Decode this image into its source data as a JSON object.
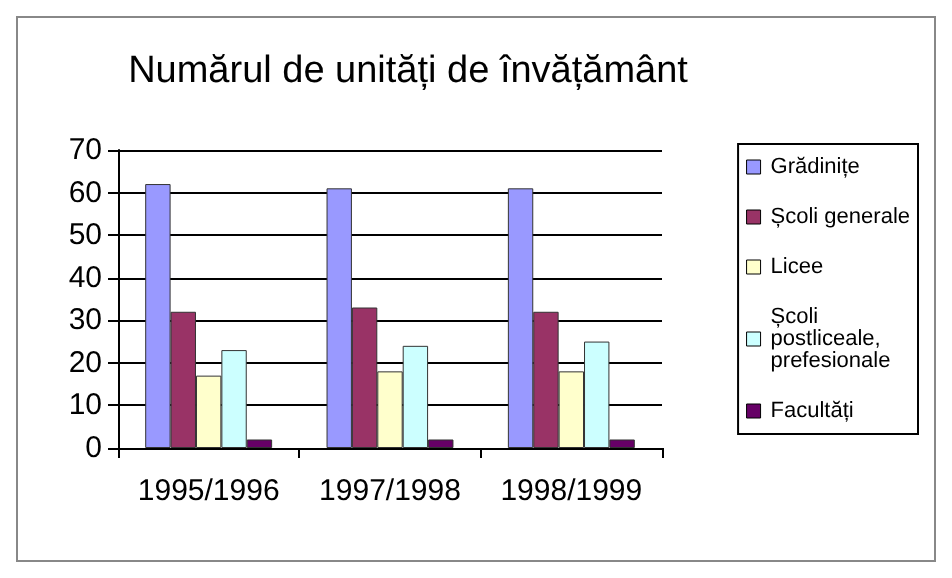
{
  "chart_data": {
    "type": "bar",
    "title": "Numărul de unități de învățământ",
    "categories": [
      "1995/1996",
      "1997/1998",
      "1998/1999"
    ],
    "series": [
      {
        "name": "Grădinițe",
        "color": "#9999ff",
        "values": [
          62,
          61,
          61
        ]
      },
      {
        "name": "Școli generale",
        "color": "#993366",
        "values": [
          32,
          33,
          32
        ]
      },
      {
        "name": "Licee",
        "color": "#ffffcc",
        "values": [
          17,
          18,
          18
        ]
      },
      {
        "name": "Școli postliceale, prefesionale",
        "color": "#ccffff",
        "values": [
          23,
          24,
          25
        ]
      },
      {
        "name": "Facultăți",
        "color": "#660066",
        "values": [
          2,
          2,
          2
        ]
      }
    ],
    "ylim": [
      0,
      70
    ],
    "yticks": [
      0,
      10,
      20,
      30,
      40,
      50,
      60,
      70
    ],
    "grid": "y",
    "legend": "right"
  }
}
